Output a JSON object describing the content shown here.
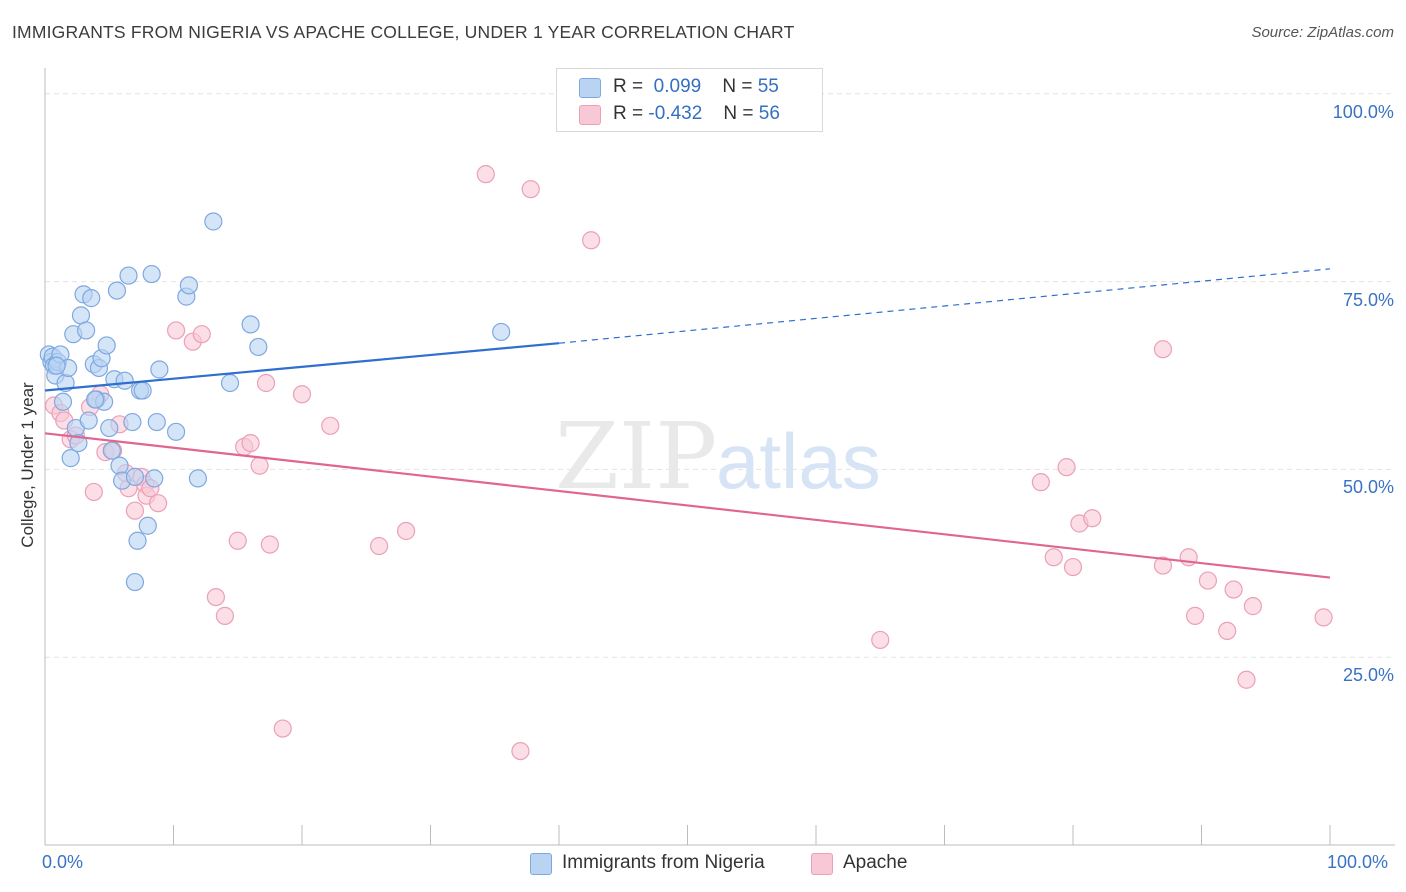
{
  "title": "IMMIGRANTS FROM NIGERIA VS APACHE COLLEGE, UNDER 1 YEAR CORRELATION CHART",
  "source": "Source: ZipAtlas.com",
  "watermark": {
    "zip": "ZIP",
    "atlas": "atlas"
  },
  "legend": {
    "nigeria": {
      "r_label": "R =",
      "r_value": "0.099",
      "n_label": "N =",
      "n_value": "55"
    },
    "apache": {
      "r_label": "R =",
      "r_value": "-0.432",
      "n_label": "N =",
      "n_value": "56"
    }
  },
  "bottom_legend": {
    "nigeria": "Immigrants from Nigeria",
    "apache": "Apache"
  },
  "colors": {
    "nigeria_fill": "#b9d3f3",
    "nigeria_stroke": "#7fa8e0",
    "nigeria_line": "#2e6fcf",
    "apache_fill": "#f8c8d6",
    "apache_stroke": "#eba0b8",
    "apache_line": "#e06690",
    "tick_text": "#3a72c4",
    "grid": "#e3e3e3"
  },
  "chart_data": {
    "type": "scatter",
    "title": "IMMIGRANTS FROM NIGERIA VS APACHE COLLEGE, UNDER 1 YEAR CORRELATION CHART",
    "xlabel": "",
    "ylabel": "College, Under 1 year",
    "xlim": [
      0,
      100
    ],
    "ylim": [
      0,
      102.5
    ],
    "x_tick_labels": [
      "0.0%",
      "100.0%"
    ],
    "y_ticks": [
      25,
      50,
      75,
      100
    ],
    "y_tick_labels": [
      "25.0%",
      "50.0%",
      "75.0%",
      "100.0%"
    ],
    "series": [
      {
        "name": "Immigrants from Nigeria",
        "r": 0.099,
        "n": 55,
        "trend": {
          "x0": 0,
          "y0": 60.5,
          "x1": 40,
          "y1": 66.8,
          "x_dash_end": 100,
          "y_dash_end": 76.7
        },
        "points": [
          [
            0.3,
            65.3
          ],
          [
            0.5,
            64.3
          ],
          [
            0.6,
            65.0
          ],
          [
            0.7,
            63.8
          ],
          [
            0.8,
            62.5
          ],
          [
            1.0,
            64.3
          ],
          [
            1.2,
            65.3
          ],
          [
            1.4,
            59.0
          ],
          [
            1.6,
            61.5
          ],
          [
            1.8,
            63.5
          ],
          [
            2.0,
            51.5
          ],
          [
            2.2,
            68.0
          ],
          [
            2.4,
            55.5
          ],
          [
            2.6,
            53.5
          ],
          [
            2.8,
            70.5
          ],
          [
            3.0,
            73.3
          ],
          [
            3.2,
            68.5
          ],
          [
            3.4,
            56.5
          ],
          [
            3.6,
            72.8
          ],
          [
            3.8,
            64.0
          ],
          [
            4.0,
            59.3
          ],
          [
            4.2,
            63.5
          ],
          [
            4.4,
            64.8
          ],
          [
            4.6,
            59.0
          ],
          [
            4.8,
            66.5
          ],
          [
            5.0,
            55.5
          ],
          [
            5.2,
            52.5
          ],
          [
            5.4,
            62.0
          ],
          [
            5.6,
            73.8
          ],
          [
            5.8,
            50.5
          ],
          [
            6.0,
            48.5
          ],
          [
            6.2,
            61.8
          ],
          [
            6.5,
            75.8
          ],
          [
            6.8,
            56.3
          ],
          [
            7.0,
            49.0
          ],
          [
            7.2,
            40.5
          ],
          [
            7.0,
            35.0
          ],
          [
            7.4,
            60.5
          ],
          [
            7.6,
            60.5
          ],
          [
            8.0,
            42.5
          ],
          [
            8.3,
            76.0
          ],
          [
            8.5,
            48.8
          ],
          [
            8.7,
            56.3
          ],
          [
            8.9,
            63.3
          ],
          [
            10.2,
            55.0
          ],
          [
            11.0,
            73.0
          ],
          [
            11.2,
            74.5
          ],
          [
            11.9,
            48.8
          ],
          [
            13.1,
            83.0
          ],
          [
            14.4,
            61.5
          ],
          [
            16.0,
            69.3
          ],
          [
            16.6,
            66.3
          ],
          [
            35.5,
            68.3
          ],
          [
            0.9,
            63.8
          ],
          [
            3.9,
            59.3
          ]
        ]
      },
      {
        "name": "Apache",
        "r": -0.432,
        "n": 56,
        "trend": {
          "x0": 0,
          "y0": 54.8,
          "x1": 100,
          "y1": 35.6
        },
        "points": [
          [
            0.7,
            58.5
          ],
          [
            1.2,
            57.5
          ],
          [
            1.5,
            56.5
          ],
          [
            2.0,
            54.0
          ],
          [
            2.4,
            54.5
          ],
          [
            3.5,
            58.3
          ],
          [
            3.8,
            47.0
          ],
          [
            4.3,
            60.0
          ],
          [
            4.7,
            52.3
          ],
          [
            5.3,
            52.5
          ],
          [
            5.8,
            56.0
          ],
          [
            6.3,
            49.5
          ],
          [
            6.5,
            47.5
          ],
          [
            7.0,
            44.5
          ],
          [
            7.5,
            49.0
          ],
          [
            7.8,
            48.0
          ],
          [
            7.9,
            46.5
          ],
          [
            8.2,
            47.5
          ],
          [
            8.8,
            45.5
          ],
          [
            10.2,
            68.5
          ],
          [
            11.5,
            67.0
          ],
          [
            12.2,
            68.0
          ],
          [
            13.3,
            33.0
          ],
          [
            14.0,
            30.5
          ],
          [
            15.0,
            40.5
          ],
          [
            15.5,
            53.0
          ],
          [
            16.0,
            53.5
          ],
          [
            16.7,
            50.5
          ],
          [
            17.2,
            61.5
          ],
          [
            17.5,
            40.0
          ],
          [
            18.5,
            15.5
          ],
          [
            20.0,
            60.0
          ],
          [
            22.2,
            55.8
          ],
          [
            26.0,
            39.8
          ],
          [
            28.1,
            41.8
          ],
          [
            34.3,
            89.3
          ],
          [
            37.0,
            12.5
          ],
          [
            37.8,
            87.3
          ],
          [
            42.5,
            80.5
          ],
          [
            65.0,
            27.3
          ],
          [
            77.5,
            48.3
          ],
          [
            78.5,
            38.3
          ],
          [
            79.5,
            50.3
          ],
          [
            80.0,
            37.0
          ],
          [
            80.5,
            42.8
          ],
          [
            81.5,
            43.5
          ],
          [
            87.0,
            66.0
          ],
          [
            87.0,
            37.2
          ],
          [
            89.0,
            38.3
          ],
          [
            89.5,
            30.5
          ],
          [
            90.5,
            35.2
          ],
          [
            92.0,
            28.5
          ],
          [
            92.5,
            34.0
          ],
          [
            93.5,
            22.0
          ],
          [
            94.0,
            31.8
          ],
          [
            99.5,
            30.3
          ]
        ]
      }
    ]
  }
}
